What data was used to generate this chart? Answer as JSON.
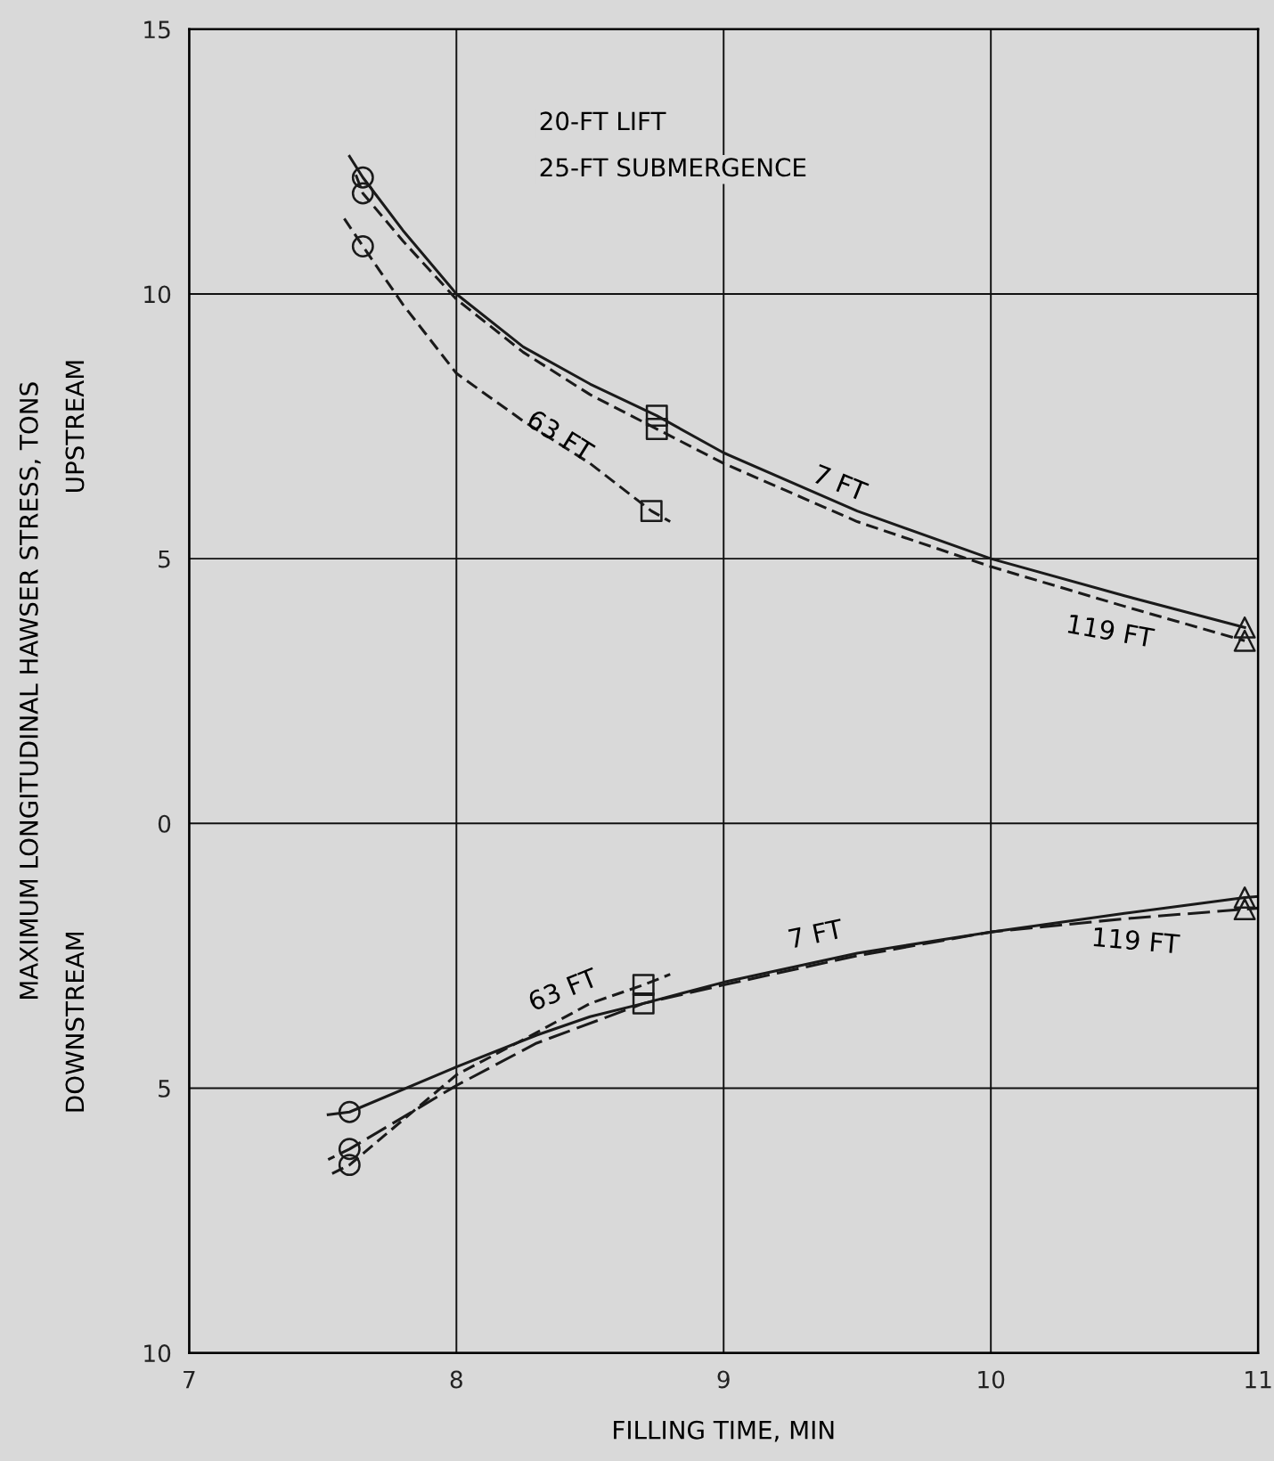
{
  "chart_data": {
    "type": "line",
    "xlabel": "FILLING TIME, MIN",
    "ylabel": "MAXIMUM LONGITUDINAL HAWSER STRESS, TONS",
    "xlim": [
      7,
      11
    ],
    "xticks": [
      7,
      8,
      9,
      10,
      11
    ],
    "ylim": [
      -10,
      15
    ],
    "yticks": [
      {
        "value": -10,
        "label": "10"
      },
      {
        "value": -5,
        "label": "5"
      },
      0,
      5,
      10,
      15
    ],
    "grid": true,
    "series": [
      {
        "line_style": "solid",
        "color": "#1a1a1a",
        "x": [
          7.6,
          7.65,
          7.8,
          8.0,
          8.25,
          8.5,
          8.75,
          9.0,
          9.5,
          10.0,
          10.5,
          10.95
        ],
        "values": [
          12.6,
          12.2,
          11.2,
          10.0,
          9.0,
          8.3,
          7.7,
          7.0,
          5.9,
          5.0,
          4.3,
          3.7
        ]
      },
      {
        "line_style": "dashed",
        "color": "#1a1a1a",
        "x": [
          7.62,
          7.65,
          7.8,
          8.0,
          8.25,
          8.5,
          8.75,
          9.0,
          9.5,
          10.0,
          10.5,
          10.95
        ],
        "values": [
          12.3,
          11.9,
          11.0,
          9.9,
          8.9,
          8.1,
          7.45,
          6.8,
          5.7,
          4.85,
          4.1,
          3.45
        ]
      },
      {
        "line_style": "dashed",
        "color": "#1a1a1a",
        "x": [
          7.57,
          7.65,
          7.8,
          8.0,
          8.25,
          8.5,
          8.73,
          8.8
        ],
        "values": [
          11.5,
          10.9,
          9.8,
          8.5,
          7.6,
          6.8,
          5.9,
          5.7
        ]
      },
      {
        "line_style": "solid",
        "color": "#1a1a1a",
        "x": [
          7.52,
          7.6,
          8.0,
          8.3,
          8.5,
          8.7,
          9.0,
          9.5,
          10.0,
          10.5,
          10.95,
          11.0
        ],
        "values": [
          -5.5,
          -5.45,
          -4.6,
          -4.0,
          -3.65,
          -3.4,
          -3.0,
          -2.45,
          -2.05,
          -1.7,
          -1.4,
          -1.38
        ]
      },
      {
        "line_style": "dashed",
        "color": "#1a1a1a",
        "x": [
          7.52,
          7.6,
          8.0,
          8.3,
          8.7,
          9.0,
          9.5,
          10.0,
          10.5,
          10.95,
          11.0
        ],
        "values": [
          -6.35,
          -6.15,
          -4.95,
          -4.15,
          -3.4,
          -3.05,
          -2.5,
          -2.05,
          -1.8,
          -1.62,
          -1.6
        ]
      },
      {
        "line_style": "dashed",
        "color": "#1a1a1a",
        "x": [
          7.52,
          7.6,
          8.0,
          8.3,
          8.5,
          8.7,
          8.8
        ],
        "values": [
          -6.65,
          -6.45,
          -4.75,
          -3.95,
          -3.4,
          -3.05,
          -2.85
        ]
      },
      {
        "type": "scatter",
        "marker": "circle",
        "color": "#1a1a1a",
        "x": [
          7.65,
          7.65,
          7.65,
          7.6,
          7.6,
          7.6
        ],
        "values": [
          12.2,
          11.9,
          10.9,
          -5.45,
          -6.15,
          -6.45
        ]
      },
      {
        "type": "scatter",
        "marker": "square",
        "color": "#1a1a1a",
        "x": [
          8.75,
          8.75,
          8.73,
          8.7,
          8.7
        ],
        "values": [
          7.7,
          7.45,
          5.9,
          -3.4,
          -3.05
        ]
      },
      {
        "type": "scatter",
        "marker": "triangle",
        "color": "#1a1a1a",
        "x": [
          10.95,
          10.95,
          10.95,
          10.95
        ],
        "values": [
          3.7,
          3.45,
          -1.4,
          -1.62
        ]
      }
    ],
    "annotations": [
      "20-FT LIFT",
      "25-FT SUBMERGENCE",
      "UPSTREAM",
      "DOWNSTREAM",
      "7 FT",
      "63 FT",
      "119 FT",
      "7 FT",
      "63 FT",
      "119 FT"
    ]
  }
}
